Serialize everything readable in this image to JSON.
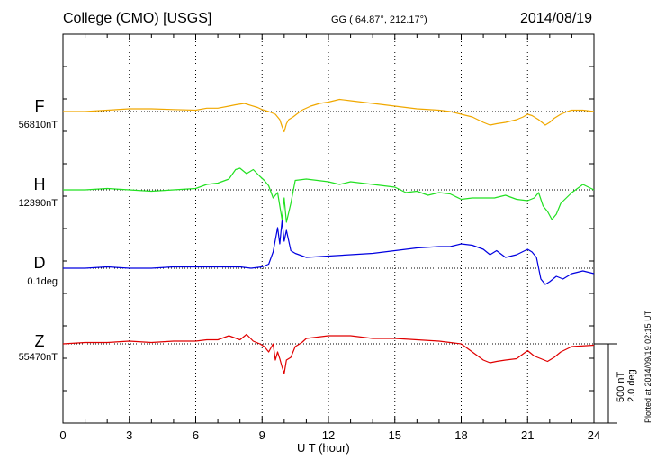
{
  "header": {
    "station": "College (CMO)  [USGS]",
    "coords": "GG ( 64.87°, 212.17°)",
    "date": "2014/08/19"
  },
  "plotted_note": "Plotted at 2014/09/19 02:15 UT",
  "scale": {
    "nT": "500 nT",
    "deg": "2.0 deg"
  },
  "chart_data": {
    "type": "line",
    "xlabel": "U T (hour)",
    "xlim": [
      0,
      24
    ],
    "xticks": [
      "0",
      "3",
      "6",
      "9",
      "12",
      "15",
      "18",
      "21",
      "24"
    ],
    "grid": true,
    "series": [
      {
        "name": "F",
        "baseline": "56810nT",
        "color": "#f0a800",
        "x": [
          0,
          1,
          2,
          3,
          4,
          5,
          6,
          6.5,
          7,
          7.5,
          7.8,
          8.2,
          8.5,
          8.8,
          9,
          9.3,
          9.6,
          9.8,
          9.9,
          10,
          10.1,
          10.2,
          10.4,
          10.8,
          11.2,
          11.6,
          12,
          12.5,
          13,
          14,
          15,
          16,
          17,
          17.5,
          18,
          18.5,
          19,
          19.3,
          19.6,
          20,
          20.5,
          20.8,
          21,
          21.2,
          21.5,
          21.8,
          22,
          22.2,
          22.5,
          22.8,
          23,
          23.5,
          24
        ],
        "values": [
          0,
          0,
          10,
          20,
          20,
          15,
          10,
          25,
          25,
          40,
          50,
          60,
          45,
          30,
          15,
          0,
          -20,
          -60,
          -110,
          -150,
          -90,
          -60,
          -40,
          10,
          40,
          60,
          70,
          90,
          80,
          60,
          40,
          20,
          10,
          0,
          -20,
          -40,
          -80,
          -100,
          -90,
          -80,
          -60,
          -40,
          -20,
          -30,
          -60,
          -100,
          -80,
          -50,
          -20,
          0,
          10,
          10,
          0
        ]
      },
      {
        "name": "H",
        "baseline": "12390nT",
        "color": "#22e022",
        "x": [
          0,
          1,
          2,
          3,
          4,
          5,
          6,
          6.5,
          7,
          7.5,
          7.8,
          8,
          8.3,
          8.6,
          8.9,
          9.1,
          9.3,
          9.5,
          9.7,
          9.9,
          10,
          10.1,
          10.3,
          10.5,
          11,
          11.5,
          12,
          12.5,
          13,
          14,
          15,
          15.5,
          16,
          16.5,
          17,
          17.5,
          18,
          18.5,
          19,
          19.5,
          20,
          20.5,
          21,
          21.3,
          21.5,
          21.7,
          21.9,
          22.1,
          22.3,
          22.5,
          23,
          23.5,
          24
        ],
        "values": [
          0,
          0,
          10,
          0,
          -10,
          0,
          10,
          40,
          50,
          80,
          150,
          160,
          120,
          150,
          100,
          70,
          30,
          -60,
          -20,
          -220,
          -60,
          -240,
          -100,
          70,
          80,
          70,
          60,
          40,
          60,
          40,
          20,
          -20,
          -10,
          -40,
          -20,
          -30,
          -70,
          -60,
          -60,
          -60,
          -40,
          -70,
          -80,
          -60,
          -20,
          -120,
          -160,
          -220,
          -180,
          -100,
          -20,
          40,
          0
        ]
      },
      {
        "name": "D",
        "baseline": "0.1deg",
        "color": "#0000e0",
        "x": [
          0,
          1,
          2,
          3,
          4,
          5,
          6,
          7,
          8,
          8.5,
          9,
          9.3,
          9.5,
          9.7,
          9.8,
          9.9,
          10,
          10.1,
          10.3,
          10.5,
          11,
          12,
          13,
          14,
          15,
          16,
          17,
          17.5,
          18,
          18.5,
          19,
          19.3,
          19.6,
          20,
          20.5,
          21,
          21.2,
          21.4,
          21.6,
          21.8,
          22,
          22.3,
          22.6,
          23,
          23.5,
          24
        ],
        "values": [
          0,
          0,
          10,
          0,
          0,
          10,
          10,
          10,
          10,
          0,
          10,
          30,
          120,
          300,
          180,
          350,
          200,
          280,
          130,
          110,
          80,
          90,
          100,
          110,
          130,
          150,
          160,
          160,
          180,
          170,
          140,
          100,
          130,
          80,
          100,
          140,
          120,
          80,
          -80,
          -120,
          -100,
          -60,
          -80,
          -40,
          -20,
          -40
        ]
      },
      {
        "name": "Z",
        "baseline": "55470nT",
        "color": "#e00000",
        "x": [
          0,
          1,
          2,
          3,
          4,
          5,
          6,
          6.5,
          7,
          7.5,
          8,
          8.3,
          8.6,
          8.9,
          9.1,
          9.3,
          9.5,
          9.6,
          9.7,
          9.8,
          9.9,
          10,
          10.1,
          10.3,
          10.5,
          10.8,
          11,
          12,
          13,
          14,
          15,
          16,
          17,
          17.5,
          18,
          18.5,
          19,
          19.3,
          19.6,
          20,
          20.5,
          21,
          21.3,
          21.6,
          21.9,
          22.2,
          22.5,
          23,
          24
        ],
        "values": [
          0,
          10,
          10,
          20,
          10,
          20,
          20,
          30,
          30,
          60,
          30,
          70,
          20,
          0,
          -20,
          -60,
          0,
          -120,
          -60,
          -110,
          -170,
          -220,
          -120,
          -100,
          -20,
          10,
          40,
          60,
          60,
          40,
          40,
          30,
          20,
          10,
          0,
          -60,
          -120,
          -140,
          -130,
          -120,
          -110,
          -50,
          -90,
          -110,
          -130,
          -100,
          -60,
          -20,
          -10
        ]
      }
    ]
  }
}
